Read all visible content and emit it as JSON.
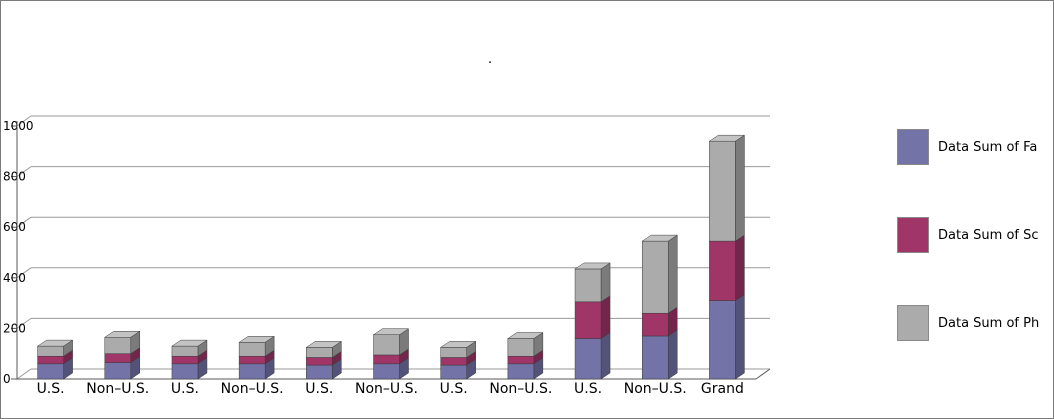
{
  "window": {
    "background": "#ffffff",
    "border_color": "#7a7a7a"
  },
  "chart_data": {
    "type": "bar",
    "stacked": true,
    "style": "3d",
    "title": ".",
    "categories": [
      "U.S.",
      "Non–U.S.",
      "U.S.",
      "Non–U.S.",
      "U.S.",
      "Non–U.S.",
      "U.S.",
      "Non–U.S.",
      "U.S.",
      "Non–U.S.",
      "Grand"
    ],
    "series": [
      {
        "name": "Data Sum of Fa",
        "color": "#7373a8",
        "values": [
          60,
          65,
          60,
          60,
          55,
          60,
          55,
          60,
          160,
          170,
          310
        ]
      },
      {
        "name": "Data Sum of Sc",
        "color": "#a03568",
        "values": [
          30,
          35,
          30,
          30,
          30,
          35,
          30,
          30,
          145,
          90,
          235
        ]
      },
      {
        "name": "Data Sum of Ph",
        "color": "#ababab",
        "values": [
          40,
          65,
          40,
          55,
          40,
          80,
          40,
          70,
          130,
          285,
          395
        ]
      }
    ],
    "ylim": [
      0,
      1000
    ],
    "yticks": [
      0,
      200,
      400,
      600,
      800,
      1000
    ],
    "grid": true,
    "legend_position": "right",
    "axis_color": "#5a5a5a",
    "grid_color": "#9a9a9a"
  }
}
